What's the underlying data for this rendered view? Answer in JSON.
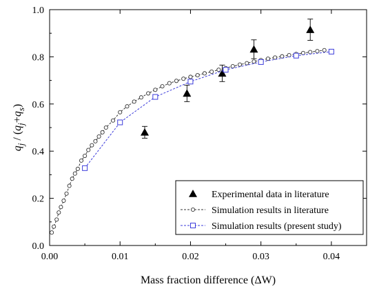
{
  "chart_data": {
    "type": "scatter",
    "xlabel": "Mass fraction difference (ΔW)",
    "ylabel_parts": [
      "q",
      "j",
      " / (",
      "q",
      "j",
      "+",
      "q",
      "s",
      ")"
    ],
    "xlim": [
      0.0,
      0.045
    ],
    "ylim": [
      0.0,
      1.0
    ],
    "xticks": [
      "0.00",
      "0.01",
      "0.02",
      "0.03",
      "0.04"
    ],
    "xtick_values": [
      0.0,
      0.01,
      0.02,
      0.03,
      0.04
    ],
    "yticks": [
      "0.0",
      "0.2",
      "0.4",
      "0.6",
      "0.8",
      "1.0"
    ],
    "ytick_values": [
      0.0,
      0.2,
      0.4,
      0.6,
      0.8,
      1.0
    ],
    "grid": false,
    "legend_position": "bottom-right",
    "series": [
      {
        "name": "Experimental data in literature",
        "marker": "triangle",
        "color": "#000000",
        "line": false,
        "points": [
          {
            "x": 0.0135,
            "y": 0.48,
            "err": 0.025
          },
          {
            "x": 0.0195,
            "y": 0.645,
            "err": 0.035
          },
          {
            "x": 0.0245,
            "y": 0.73,
            "err": 0.035
          },
          {
            "x": 0.029,
            "y": 0.832,
            "err": 0.04
          },
          {
            "x": 0.037,
            "y": 0.915,
            "err": 0.045
          }
        ]
      },
      {
        "name": "Simulation results in literature",
        "marker": "circle",
        "color": "#333333",
        "line": true,
        "points": [
          {
            "x": 0.0003,
            "y": 0.055
          },
          {
            "x": 0.0006,
            "y": 0.08
          },
          {
            "x": 0.001,
            "y": 0.11
          },
          {
            "x": 0.0013,
            "y": 0.14
          },
          {
            "x": 0.0016,
            "y": 0.163
          },
          {
            "x": 0.002,
            "y": 0.19
          },
          {
            "x": 0.0024,
            "y": 0.22
          },
          {
            "x": 0.0028,
            "y": 0.253
          },
          {
            "x": 0.0032,
            "y": 0.283
          },
          {
            "x": 0.0036,
            "y": 0.305
          },
          {
            "x": 0.004,
            "y": 0.325
          },
          {
            "x": 0.0045,
            "y": 0.36
          },
          {
            "x": 0.005,
            "y": 0.38
          },
          {
            "x": 0.0055,
            "y": 0.405
          },
          {
            "x": 0.006,
            "y": 0.425
          },
          {
            "x": 0.0065,
            "y": 0.442
          },
          {
            "x": 0.007,
            "y": 0.462
          },
          {
            "x": 0.0075,
            "y": 0.48
          },
          {
            "x": 0.008,
            "y": 0.5
          },
          {
            "x": 0.009,
            "y": 0.53
          },
          {
            "x": 0.01,
            "y": 0.565
          },
          {
            "x": 0.011,
            "y": 0.59
          },
          {
            "x": 0.012,
            "y": 0.61
          },
          {
            "x": 0.013,
            "y": 0.628
          },
          {
            "x": 0.014,
            "y": 0.645
          },
          {
            "x": 0.015,
            "y": 0.66
          },
          {
            "x": 0.016,
            "y": 0.675
          },
          {
            "x": 0.017,
            "y": 0.688
          },
          {
            "x": 0.018,
            "y": 0.698
          },
          {
            "x": 0.019,
            "y": 0.707
          },
          {
            "x": 0.02,
            "y": 0.715
          },
          {
            "x": 0.021,
            "y": 0.722
          },
          {
            "x": 0.022,
            "y": 0.73
          },
          {
            "x": 0.023,
            "y": 0.737
          },
          {
            "x": 0.024,
            "y": 0.745
          },
          {
            "x": 0.025,
            "y": 0.752
          },
          {
            "x": 0.026,
            "y": 0.76
          },
          {
            "x": 0.027,
            "y": 0.767
          },
          {
            "x": 0.028,
            "y": 0.773
          },
          {
            "x": 0.029,
            "y": 0.78
          },
          {
            "x": 0.03,
            "y": 0.786
          },
          {
            "x": 0.031,
            "y": 0.792
          },
          {
            "x": 0.032,
            "y": 0.797
          },
          {
            "x": 0.033,
            "y": 0.802
          },
          {
            "x": 0.034,
            "y": 0.807
          },
          {
            "x": 0.035,
            "y": 0.812
          },
          {
            "x": 0.036,
            "y": 0.816
          },
          {
            "x": 0.037,
            "y": 0.82
          },
          {
            "x": 0.038,
            "y": 0.824
          },
          {
            "x": 0.039,
            "y": 0.828
          }
        ]
      },
      {
        "name": "Simulation results (present study)",
        "marker": "square",
        "color": "#3b3bdb",
        "line": true,
        "points": [
          {
            "x": 0.005,
            "y": 0.328
          },
          {
            "x": 0.01,
            "y": 0.522
          },
          {
            "x": 0.015,
            "y": 0.63
          },
          {
            "x": 0.02,
            "y": 0.695
          },
          {
            "x": 0.025,
            "y": 0.745
          },
          {
            "x": 0.03,
            "y": 0.778
          },
          {
            "x": 0.035,
            "y": 0.805
          },
          {
            "x": 0.04,
            "y": 0.822
          }
        ]
      }
    ]
  }
}
